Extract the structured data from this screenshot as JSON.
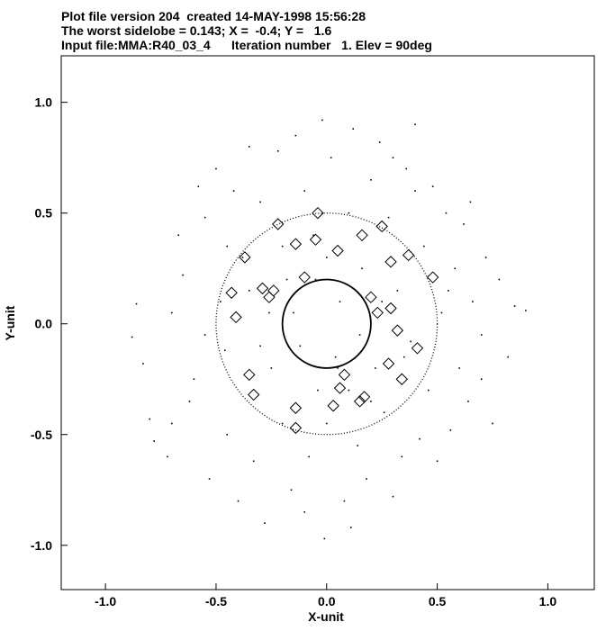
{
  "chart_data": {
    "type": "scatter",
    "header": [
      "Plot file version 204  created 14-MAY-1998 15:56:28",
      "The worst sidelobe = 0.143; X =  -0.4; Y =   1.6",
      "Input file:MMA:R40_03_4      Iteration number   1. Elev = 90deg"
    ],
    "xlabel": "X-unit",
    "ylabel": "Y-unit",
    "xlim": [
      -1.2,
      1.21
    ],
    "ylim": [
      -1.2,
      1.21
    ],
    "xticks": [
      {
        "value": -1,
        "label": "-1.0"
      },
      {
        "value": -0.5,
        "label": "-0.5"
      },
      {
        "value": 0,
        "label": "0.0"
      },
      {
        "value": 0.5,
        "label": "0.5"
      },
      {
        "value": 1,
        "label": "1.0"
      }
    ],
    "yticks": [
      {
        "value": -1,
        "label": "-1.0"
      },
      {
        "value": -0.5,
        "label": "-0.5"
      },
      {
        "value": 0,
        "label": "0.0"
      },
      {
        "value": 0.5,
        "label": "0.5"
      },
      {
        "value": 1,
        "label": "1.0"
      }
    ],
    "circles": [
      {
        "x": 0,
        "y": 0,
        "r": 0.5,
        "style": "dotted"
      },
      {
        "x": 0,
        "y": 0,
        "r": 0.2,
        "style": "solid"
      }
    ],
    "series": [
      {
        "marker": "dot",
        "color": "#000000",
        "x": [
          -0.86,
          -0.88,
          -0.83,
          -0.8,
          -0.78,
          -0.72,
          -0.7,
          -0.67,
          -0.65,
          -0.6,
          -0.58,
          -0.55,
          -0.53,
          -0.5,
          -0.48,
          -0.46,
          -0.45,
          -0.42,
          -0.4,
          -0.38,
          -0.35,
          -0.33,
          -0.3,
          -0.28,
          -0.26,
          -0.22,
          -0.2,
          -0.18,
          -0.16,
          -0.14,
          -0.12,
          -0.1,
          -0.08,
          -0.06,
          -0.04,
          -0.02,
          -0.01,
          0.02,
          0.04,
          0.06,
          0.08,
          0.1,
          0.11,
          0.12,
          0.14,
          0.16,
          0.18,
          0.2,
          0.22,
          0.24,
          0.26,
          0.28,
          0.3,
          0.32,
          0.34,
          0.36,
          0.38,
          0.4,
          0.42,
          0.44,
          0.46,
          0.48,
          0.5,
          0.52,
          0.54,
          0.56,
          0.58,
          0.6,
          0.62,
          0.64,
          0.66,
          0.7,
          0.72,
          0.75,
          0.78,
          0.82,
          0.85,
          0.9,
          -0.3,
          0.1,
          -0.15,
          0.15,
          -0.05,
          0.05,
          0.25,
          -0.25,
          0.35,
          -0.35,
          0,
          0,
          -0.2,
          0.2,
          -0.55,
          0.55,
          -0.62,
          0.65,
          -0.45,
          0.4,
          -0.1,
          0.3,
          -0.7,
          0.7
        ],
        "y": [
          0.09,
          -0.06,
          -0.18,
          -0.43,
          -0.53,
          -0.6,
          -0.45,
          0.4,
          0.22,
          -0.25,
          0.62,
          0.48,
          -0.7,
          0.7,
          0.1,
          -0.12,
          -0.5,
          0.6,
          -0.8,
          0.3,
          0.8,
          -0.62,
          0.55,
          -0.9,
          0.05,
          0.78,
          -0.45,
          0.2,
          -0.75,
          0.85,
          -0.1,
          0.6,
          -0.6,
          0.4,
          -0.3,
          0.92,
          -0.97,
          0.75,
          -0.15,
          0.1,
          -0.8,
          0.5,
          -0.92,
          0.88,
          -0.55,
          0.25,
          -0.7,
          0.65,
          -0.2,
          0.82,
          -0.4,
          0.48,
          -0.78,
          0.15,
          -0.6,
          0.7,
          -0.08,
          0.9,
          -0.52,
          0.35,
          -0.3,
          0.62,
          -0.62,
          0.05,
          0.5,
          -0.48,
          0.25,
          -0.2,
          0.45,
          -0.35,
          0.1,
          -0.05,
          0.3,
          -0.45,
          0.2,
          -0.15,
          0.08,
          0.06,
          -0.1,
          -0.3,
          0.05,
          -0.05,
          0.2,
          -0.2,
          0.1,
          -0.2,
          -0.15,
          0.15,
          0.3,
          -0.45,
          0.35,
          -0.35,
          -0.05,
          0.15,
          -0.35,
          0.55,
          0.35,
          0.6,
          -0.85,
          0.75,
          0.05,
          -0.25
        ]
      },
      {
        "marker": "diamond",
        "color": "#000000",
        "x": [
          -0.04,
          -0.22,
          0.25,
          -0.14,
          -0.05,
          0.16,
          0.05,
          0.37,
          -0.37,
          0.29,
          -0.1,
          0.48,
          -0.29,
          -0.24,
          -0.26,
          -0.43,
          0.2,
          0.23,
          0.29,
          -0.41,
          0.32,
          0.28,
          0.41,
          -0.35,
          0.34,
          0.08,
          0.06,
          -0.33,
          0.17,
          0.15,
          0.03,
          -0.14,
          -0.14
        ],
        "y": [
          0.5,
          0.45,
          0.44,
          0.36,
          0.38,
          0.4,
          0.33,
          0.31,
          0.3,
          0.28,
          0.21,
          0.21,
          0.16,
          0.15,
          0.12,
          0.14,
          0.12,
          0.05,
          0.07,
          0.03,
          -0.03,
          -0.18,
          -0.11,
          -0.23,
          -0.25,
          -0.23,
          -0.29,
          -0.32,
          -0.33,
          -0.35,
          -0.37,
          -0.38,
          -0.47
        ]
      }
    ]
  }
}
